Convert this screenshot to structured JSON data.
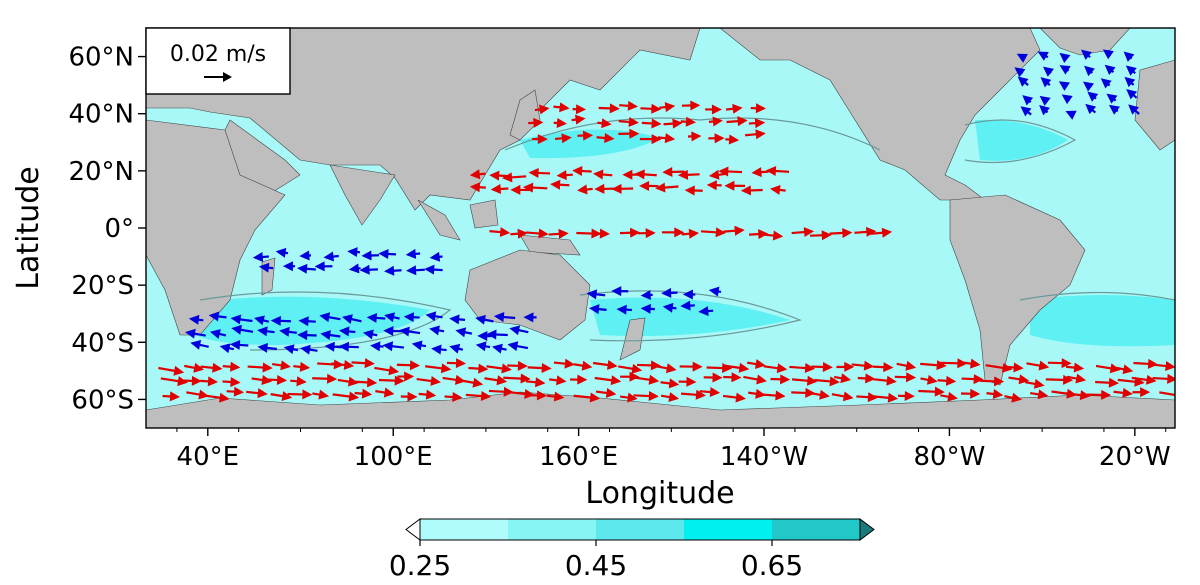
{
  "axes": {
    "xlabel": "Longitude",
    "ylabel": "Latitude",
    "lon_range": [
      20,
      353
    ],
    "lat_range": [
      -70,
      70
    ],
    "x_ticks": [
      {
        "lon": 40,
        "label": "40°E"
      },
      {
        "lon": 100,
        "label": "100°E"
      },
      {
        "lon": 160,
        "label": "160°E"
      },
      {
        "lon": 220,
        "label": "140°W"
      },
      {
        "lon": 280,
        "label": "80°W"
      },
      {
        "lon": 340,
        "label": "20°W"
      }
    ],
    "y_ticks": [
      {
        "lat": 60,
        "label": "60°N"
      },
      {
        "lat": 40,
        "label": "40°N"
      },
      {
        "lat": 20,
        "label": "20°N"
      },
      {
        "lat": 0,
        "label": "0°"
      },
      {
        "lat": -20,
        "label": "20°S"
      },
      {
        "lat": -40,
        "label": "40°S"
      },
      {
        "lat": -60,
        "label": "60°S"
      }
    ]
  },
  "reference_key": {
    "label": "0.02 m/s",
    "speed": 0.02
  },
  "colorbar": {
    "ticks": [
      "0.25",
      "0.45",
      "0.65"
    ],
    "levels": [
      0.2,
      0.25,
      0.35,
      0.45,
      0.55,
      0.65,
      0.75
    ],
    "colors": [
      "#ffffff",
      "#b0fbfb",
      "#88f5f5",
      "#5ce8ec",
      "#00f0f0",
      "#22c8c8",
      "#1a7a7a"
    ]
  },
  "colors": {
    "ocean": "#a8f8f8",
    "ocean_high": "#5ef0f2",
    "land": "#bebebe",
    "positive_arrow": "#e00000",
    "negative_arrow": "#0000dd",
    "contour": "#6a9a9a"
  },
  "arrow_groups": [
    {
      "name": "north-pacific-westward",
      "color": "red",
      "lon": [
        130,
        230
      ],
      "lat": [
        14,
        22
      ],
      "u": -0.018,
      "v": 0.0
    },
    {
      "name": "north-pacific-kuroshio",
      "color": "red",
      "lon": [
        145,
        220
      ],
      "lat": [
        32,
        42
      ],
      "u": 0.016,
      "v": 0.0
    },
    {
      "name": "equatorial-pacific",
      "color": "red",
      "lon": [
        130,
        260
      ],
      "lat": [
        -2,
        2
      ],
      "u": 0.02,
      "v": 0.0
    },
    {
      "name": "southern-ocean-acc",
      "color": "red",
      "lon": [
        25,
        350
      ],
      "lat": [
        -58,
        -45
      ],
      "u": 0.02,
      "v": -0.002
    },
    {
      "name": "indian-ocean-westward",
      "color": "blue",
      "lon": [
        60,
        120
      ],
      "lat": [
        -14,
        -6
      ],
      "u": -0.014,
      "v": 0.0
    },
    {
      "name": "south-indian-westward",
      "color": "blue",
      "lon": [
        40,
        150
      ],
      "lat": [
        -42,
        -30
      ],
      "u": -0.016,
      "v": 0.002
    },
    {
      "name": "south-pacific-westward",
      "color": "blue",
      "lon": [
        170,
        205
      ],
      "lat": [
        -28,
        -22
      ],
      "u": -0.014,
      "v": 0.0
    },
    {
      "name": "north-atlantic-mixed",
      "color": "blue",
      "lon": [
        305,
        345
      ],
      "lat": [
        40,
        62
      ],
      "u": -0.008,
      "v": 0.006
    }
  ]
}
